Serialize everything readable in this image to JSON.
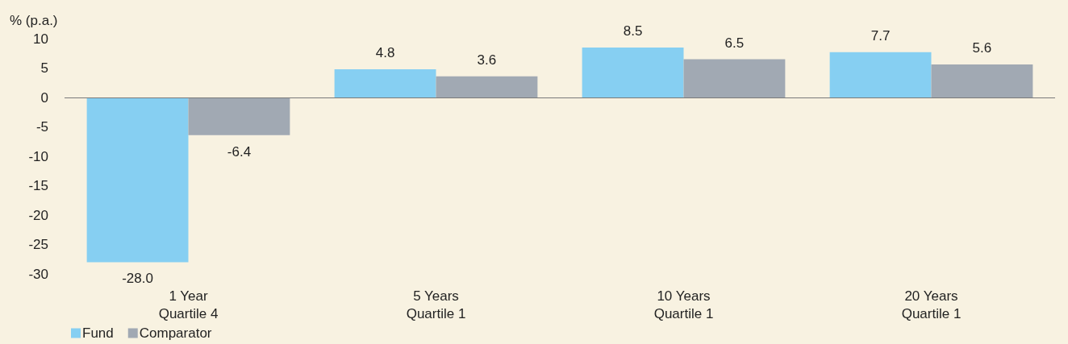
{
  "chart_data": {
    "type": "bar",
    "ylabel": "% (p.a.)",
    "categories": [
      "1 Year\nQuartile 4",
      "5 Years\nQuartile 1",
      "10 Years\nQuartile 1",
      "20 Years\nQuartile 1"
    ],
    "series": [
      {
        "name": "Fund",
        "color": "#86cff2",
        "values": [
          -28.0,
          4.8,
          8.5,
          7.7
        ],
        "value_labels": [
          "-28.0",
          "4.8",
          "8.5",
          "7.7"
        ]
      },
      {
        "name": "Comparator",
        "color": "#a1a9b3",
        "values": [
          -6.4,
          3.6,
          6.5,
          5.6
        ],
        "value_labels": [
          "-6.4",
          "3.6",
          "6.5",
          "5.6"
        ]
      }
    ],
    "ylim": [
      -30,
      10
    ],
    "yticks": [
      -30,
      -25,
      -20,
      -15,
      -10,
      -5,
      0,
      5,
      10
    ],
    "ref_lines": [
      {
        "axis": "y",
        "value": 0,
        "color": "#7a7a7a"
      }
    ],
    "grid": false,
    "legend": "bottom left"
  }
}
